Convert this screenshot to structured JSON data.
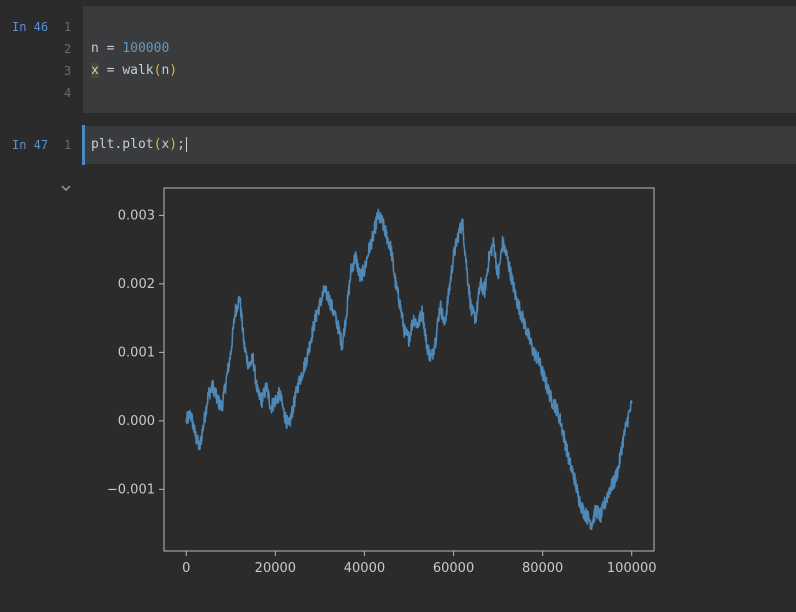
{
  "cells": [
    {
      "prompt": "In 46",
      "line_numbers": [
        "1",
        "2",
        "3",
        "4"
      ],
      "code": {
        "line2_var": "n",
        "line2_op": " = ",
        "line2_value": "100000",
        "line3_var": "x",
        "line3_op": " = ",
        "line3_func": "walk",
        "line3_open": "(",
        "line3_arg": "n",
        "line3_close": ")"
      }
    },
    {
      "prompt": "In 47",
      "line_numbers": [
        "1"
      ],
      "code": {
        "line1_text": "plt.plot",
        "line1_open": "(",
        "line1_arg": "x",
        "line1_close": ")",
        "line1_end": ";"
      }
    }
  ],
  "output": {
    "collapse_icon": "chevron-down-icon",
    "chart_data": {
      "type": "line",
      "title": "",
      "xlabel": "",
      "ylabel": "",
      "xlim": [
        -5000,
        105000
      ],
      "ylim": [
        -0.0019,
        0.0034
      ],
      "x_ticks": [
        0,
        20000,
        40000,
        60000,
        80000,
        100000
      ],
      "x_tick_labels": [
        "0",
        "20000",
        "40000",
        "60000",
        "80000",
        "100000"
      ],
      "y_ticks": [
        0.003,
        0.002,
        0.001,
        0.0,
        -0.001
      ],
      "y_tick_labels": [
        "0.003",
        "0.002",
        "0.001",
        "0.000",
        "−0.001"
      ],
      "series_color": "#4f87b5",
      "series": [
        {
          "x": [
            0,
            1000,
            2000,
            3000,
            4000,
            5000,
            6000,
            7000,
            8000,
            9000,
            10000,
            11000,
            12000,
            13000,
            14000,
            15000,
            16000,
            17000,
            18000,
            19000,
            20000,
            21000,
            22000,
            23000,
            24000,
            25000,
            26000,
            27000,
            28000,
            29000,
            30000,
            31000,
            32000,
            33000,
            34000,
            35000,
            36000,
            37000,
            38000,
            39000,
            40000,
            41000,
            42000,
            43000,
            44000,
            45000,
            46000,
            47000,
            48000,
            49000,
            50000,
            51000,
            52000,
            53000,
            54000,
            55000,
            56000,
            57000,
            58000,
            59000,
            60000,
            61000,
            62000,
            63000,
            64000,
            65000,
            66000,
            67000,
            68000,
            69000,
            70000,
            71000,
            72000,
            73000,
            74000,
            75000,
            76000,
            77000,
            78000,
            79000,
            80000,
            81000,
            82000,
            83000,
            84000,
            85000,
            86000,
            87000,
            88000,
            89000,
            90000,
            91000,
            92000,
            93000,
            94000,
            95000,
            96000,
            97000,
            98000,
            99000,
            100000
          ],
          "values": [
            0.0,
            0.0001,
            -0.0002,
            -0.0004,
            0.0,
            0.0004,
            0.0005,
            0.0003,
            0.0002,
            0.0006,
            0.001,
            0.0016,
            0.0018,
            0.0011,
            0.0008,
            0.0009,
            0.0004,
            0.0003,
            0.0005,
            0.0002,
            0.0003,
            0.0004,
            0.0001,
            -0.0001,
            0.0002,
            0.0005,
            0.0007,
            0.0009,
            0.0012,
            0.0015,
            0.0017,
            0.0019,
            0.0018,
            0.0016,
            0.0014,
            0.0011,
            0.0016,
            0.0022,
            0.0024,
            0.0021,
            0.0022,
            0.0025,
            0.0027,
            0.003,
            0.0029,
            0.0027,
            0.0025,
            0.002,
            0.0017,
            0.0013,
            0.0012,
            0.0015,
            0.0014,
            0.0016,
            0.0011,
            0.0009,
            0.0012,
            0.0017,
            0.0014,
            0.0019,
            0.0024,
            0.0027,
            0.0029,
            0.0022,
            0.0016,
            0.0015,
            0.002,
            0.0019,
            0.0024,
            0.0026,
            0.0021,
            0.0026,
            0.0024,
            0.0021,
            0.0018,
            0.0016,
            0.0014,
            0.0012,
            0.001,
            0.0009,
            0.0007,
            0.0005,
            0.0003,
            0.0002,
            0.0,
            -0.0003,
            -0.0006,
            -0.0008,
            -0.0011,
            -0.0013,
            -0.0014,
            -0.0015,
            -0.0013,
            -0.0014,
            -0.0012,
            -0.001,
            -0.0009,
            -0.0007,
            -0.0003,
            0.0,
            0.00025
          ]
        }
      ]
    }
  }
}
